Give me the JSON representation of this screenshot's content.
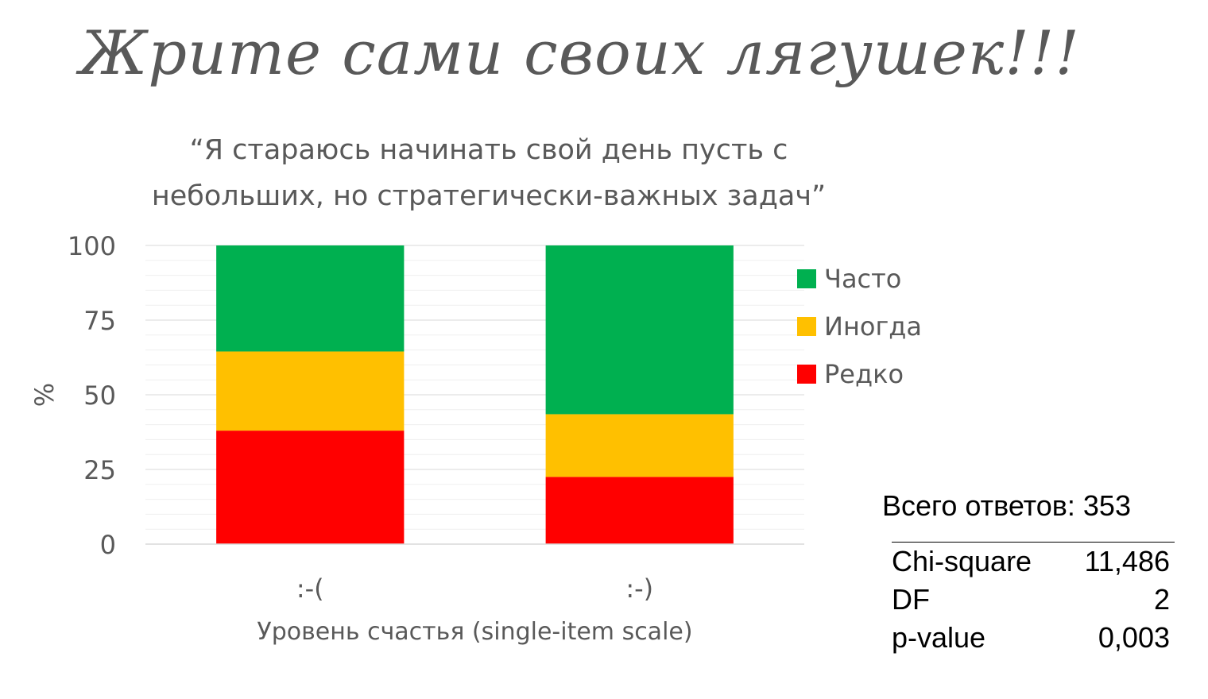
{
  "slide": {
    "title": "Жрите сами своих лягушек!!!"
  },
  "chart_data": {
    "type": "bar",
    "stacked": true,
    "title_lines": [
      "“Я стараюсь начинать свой день пусть с",
      "небольших, но стратегически-важных задач”"
    ],
    "categories": [
      ":-(",
      ":-)"
    ],
    "series": [
      {
        "name": "Редко",
        "values": [
          38,
          22.5
        ],
        "color": "#FF0000"
      },
      {
        "name": "Иногда",
        "values": [
          26.5,
          21
        ],
        "color": "#FFC000"
      },
      {
        "name": "Часто",
        "values": [
          35.5,
          56.5
        ],
        "color": "#00B050"
      }
    ],
    "xlabel": "Уровень счастья (single-item scale)",
    "ylabel": "%",
    "ylim": [
      0,
      100
    ],
    "yticks": [
      "0",
      "25",
      "50",
      "75",
      "100"
    ],
    "legend_position": "right",
    "legend_order": [
      "Часто",
      "Иногда",
      "Редко"
    ],
    "grid": true
  },
  "stats": {
    "total_label": "Всего ответов: 353",
    "rows": [
      {
        "label": "Chi-square",
        "value": "11,486"
      },
      {
        "label": "DF",
        "value": "2"
      },
      {
        "label": "p-value",
        "value": "0,003"
      }
    ]
  }
}
